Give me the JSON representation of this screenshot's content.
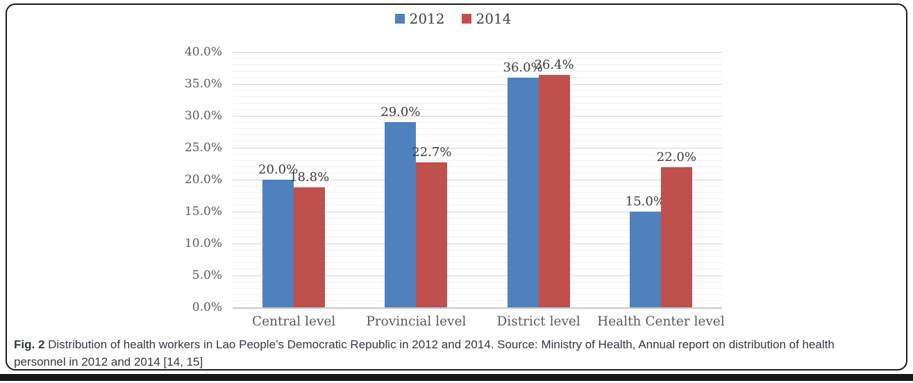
{
  "figure": {
    "caption_prefix": "Fig. 2",
    "caption_text": " Distribution of health workers in Lao People’s Democratic Republic in 2012 and 2014. Source: Ministry of Health, Annual report on distribution of health personnel in 2012 and 2014 [14, 15]"
  },
  "colors": {
    "series_2012": "#4e81bd",
    "series_2014": "#c0504d",
    "grid_major": "#d4d4d4",
    "grid_minor": "#f0f0f0",
    "axis_line": "#c9c9c9",
    "axis_text": "#595959",
    "data_label_text": "#3c3c3c",
    "caption_text": "#323741",
    "border": "#1a1a1a"
  },
  "chart_data": {
    "type": "bar",
    "title": "",
    "categories": [
      "Central level",
      "Provincial level",
      "District level",
      "Health Center level"
    ],
    "series": [
      {
        "name": "2012",
        "color": "#4e81bd",
        "values": [
          20.0,
          29.0,
          36.0,
          15.0
        ],
        "labels": [
          "20.0%",
          "29.0%",
          "36.0%",
          "15.0%"
        ]
      },
      {
        "name": "2014",
        "color": "#c0504d",
        "values": [
          18.8,
          22.7,
          36.4,
          22.0
        ],
        "labels": [
          "18.8%",
          "22.7%",
          "36.4%",
          "22.0%"
        ]
      }
    ],
    "ylim": [
      0,
      40
    ],
    "y_major_step": 5,
    "y_minor_step": 1,
    "y_tick_labels": [
      "0.0%",
      "5.0%",
      "10.0%",
      "15.0%",
      "20.0%",
      "25.0%",
      "30.0%",
      "35.0%",
      "40.0%"
    ],
    "xlabel": "",
    "ylabel": "",
    "legend_position": "top-center",
    "grid": "horizontal, major every 5% with minor every 1%"
  }
}
